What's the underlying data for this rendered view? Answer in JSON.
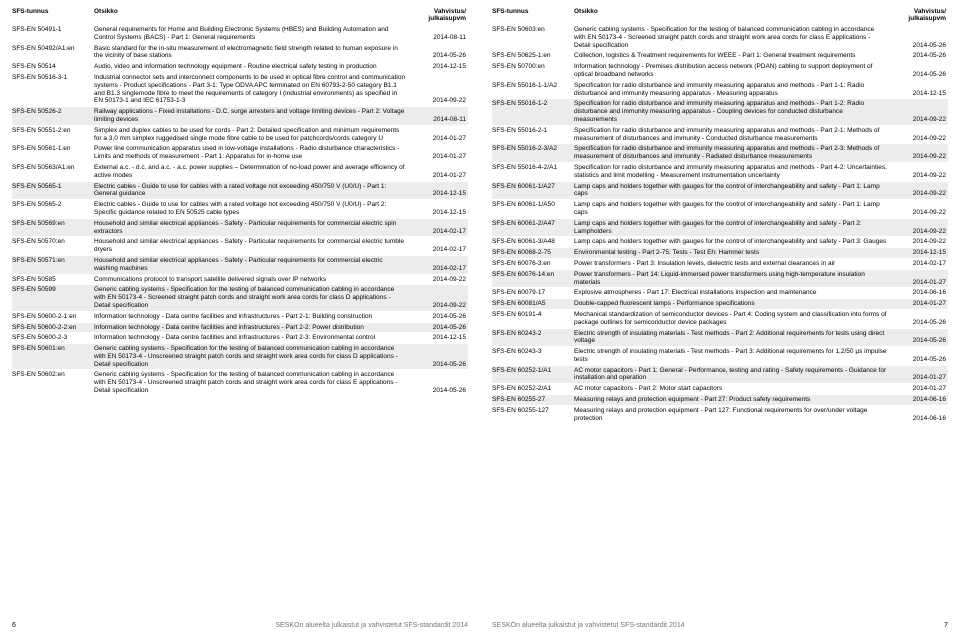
{
  "header": {
    "sfs_label": "SFS-tunnus",
    "title_label": "Otsikko",
    "date_label_l1": "Vahvistus/",
    "date_label_l2": "julkaisupvm"
  },
  "left_footer_page": "6",
  "right_footer_page": "7",
  "footer_text": "SESKOn alueelta julkaistut ja vahvistetut SFS-standardit 2014",
  "left_rows": [
    {
      "sfs": "SFS-EN 50491-1",
      "title": "General requirements for Home and Building Electronic Systems (HBES) and Building Automation and Control Systems (BACS) - Part 1: General requirements",
      "date": "2014-08-11",
      "shaded": false
    },
    {
      "sfs": "SFS-EN 50492/A1:en",
      "title": "Basic standard for the in-situ measurement of electromagnetic field strength related to human exposure in the vicinity of base stations",
      "date": "2014-05-26",
      "shaded": false
    },
    {
      "sfs": "SFS-EN 50514",
      "title": "Audio, video and information technology equipment - Routine electrical safety testing in production",
      "date": "2014-12-15",
      "shaded": false
    },
    {
      "sfs": "SFS-EN 50516-3-1",
      "title": "Industrial connector sets and interconnect components to be used in optical fibre control and communication systems - Product specifications - Part 3-1: Type ODVA APC terminated on EN 60793-2-50 category B1.1 and B1.3 singlemode fibre to meet the requirements of category I (industrial environments) as specified in EN 50173-1 and IEC 61753-1-3",
      "date": "2014-09-22",
      "shaded": false
    },
    {
      "sfs": "SFS-EN 50526-2",
      "title": "Railway applications - Fixed installations - D.C. surge arresters and voltage limiting devices - Part 2: Voltage limiting devices",
      "date": "2014-08-11",
      "shaded": true
    },
    {
      "sfs": "SFS-EN 50551-2:en",
      "title": "Simplex and duplex cables to be used for cords - Part 2: Detailed specification and minimum requirements for a 3,0 mm simplex ruggedised single mode fibre cable to be used for patchcords/cords category U",
      "date": "2014-01-27",
      "shaded": false
    },
    {
      "sfs": "SFS-EN 50561-1:en",
      "title": "Power line communication apparatus used in low-voltage installations - Radio disturbance characteristics - Limits and methods of measurement - Part 1: Apparatus for in-home use",
      "date": "2014-01-27",
      "shaded": false
    },
    {
      "sfs": "SFS-EN 50563/A1:en",
      "title": "External a.c. - d.c. and a.c. - a.c. power supplies – Determination of no-load power and average efficiency of active modes",
      "date": "2014-01-27",
      "shaded": false
    },
    {
      "sfs": "SFS-EN 50565-1",
      "title": "Electric cables - Guide to use for cables with a rated voltage not exceeding 450/750 V (U0/U) - Part 1: General guidance",
      "date": "2014-12-15",
      "shaded": true
    },
    {
      "sfs": "SFS-EN 50565-2",
      "title": "Electric cables - Guide to use for cables with a rated voltage not exceeding 450/750 V (U0/U) - Part 2: Specific guidance related to EN 50525 cable types",
      "date": "2014-12-15",
      "shaded": false
    },
    {
      "sfs": "SFS-EN 50569:en",
      "title": "Household and similar electrical appliances - Safety - Particular requirements for commercial electric spin extractors",
      "date": "2014-02-17",
      "shaded": true
    },
    {
      "sfs": "SFS-EN 50570:en",
      "title": "Household and similar electrical appliances - Safety - Particular requirements for commercial electric tumble dryers",
      "date": "2014-02-17",
      "shaded": false
    },
    {
      "sfs": "SFS-EN 50571:en",
      "title": "Household and similar electrical appliances - Safety - Particular requirements for commercial electric washing machines",
      "date": "2014-02-17",
      "shaded": true
    },
    {
      "sfs": "SFS-EN 50585",
      "title": "Communications protocol to transport satellite delivered signals over IP networks",
      "date": "2014-09-22",
      "shaded": false
    },
    {
      "sfs": "SFS-EN 50599",
      "title": "Generic cabling systems - Specification for the testing of balanced communication cabling in accordance with EN 50173-4 - Screened straight patch cords and straight work area cords for class D applications - Detail specification",
      "date": "2014-09-22",
      "shaded": true
    },
    {
      "sfs": "SFS-EN 50600-2-1:en",
      "title": "Information technology - Data centre facilities and infrastructures - Part 2-1: Building construction",
      "date": "2014-05-26",
      "shaded": false
    },
    {
      "sfs": "SFS-EN 50600-2-2:en",
      "title": "Information technology - Data centre facilities and infrastructures - Part 2-2: Power distribution",
      "date": "2014-05-26",
      "shaded": true
    },
    {
      "sfs": "SFS-EN 50600-2-3",
      "title": "Information technology - Data centre facilities and infrastructures - Part 2-3: Environmental control",
      "date": "2014-12-15",
      "shaded": false
    },
    {
      "sfs": "SFS-EN 50601:en",
      "title": "Generic cabling systems - Specification for the testing of balanced communication cabling in accordance with EN 50173-4 - Unscreened straight patch cords and straight work area cords for class D applications - Detail specification",
      "date": "2014-05-26",
      "shaded": true
    },
    {
      "sfs": "SFS-EN 50602:en",
      "title": "Generic cabling systems - Specification for the testing of balanced communication cabling in accordance with EN 50173-4 - Unscreened straight patch cords and straight work area cords for class E applications - Detail specification",
      "date": "2014-05-26",
      "shaded": false
    }
  ],
  "right_rows": [
    {
      "sfs": "SFS-EN 50603:en",
      "title": "Generic cabling systems - Specification for the testing of balanced communication cabling in accordance with EN 50173-4 - Screened straight patch cords and straight work area cords for class E applications - Detail specification",
      "date": "2014-05-26",
      "shaded": false
    },
    {
      "sfs": "SFS-EN 50625-1:en",
      "title": "Collection, logistics & Treatment requirements for WEEE - Part 1: General treatment requirements",
      "date": "2014-05-26",
      "shaded": false
    },
    {
      "sfs": "SFS-EN 50700:en",
      "title": "Information technology - Premises distribution access network (PDAN) cabling to support deployment of optical broadband networks",
      "date": "2014-05-26",
      "shaded": false
    },
    {
      "sfs": "SFS-EN 55016-1-1/A2",
      "title": "Specification for radio disturbance and immunity measuring apparatus and methods - Part 1-1: Radio disturbance and immunity measuring apparatus - Measuring apparatus",
      "date": "2014-12-15",
      "shaded": false
    },
    {
      "sfs": "SFS-EN 55016-1-2",
      "title": "Specification for radio disturbance and immunity measuring apparatus and methods - Part 1-2: Radio disturbance and immunity measuring apparatus - Coupling devices for conducted disturbance measurements",
      "date": "2014-09-22",
      "shaded": true
    },
    {
      "sfs": "SFS-EN 55016-2-1",
      "title": "Specification for radio disturbance and immunity measuring apparatus and methods - Part 2-1: Methods of measurement of disturbances and immunity - Conducted disturbance measurements",
      "date": "2014-09-22",
      "shaded": false
    },
    {
      "sfs": "SFS-EN 55016-2-3/A2",
      "title": "Specification for radio disturbance and immunity measuring apparatus and methods - Part 2-3: Methods of measurement of disturbances and immunity - Radiated disturbance measurements",
      "date": "2014-09-22",
      "shaded": true
    },
    {
      "sfs": "SFS-EN 55016-4-2/A1",
      "title": "Specification for radio disturbance and immunity measuring apparatus and methods - Part 4-2: Uncertainties, statistics and limit modelling - Measurement instrumentation uncertainty",
      "date": "2014-09-22",
      "shaded": false
    },
    {
      "sfs": "SFS-EN 60061-1/A27",
      "title": "Lamp caps and holders together with gauges for the control of interchangeability and safety - Part 1: Lamp caps",
      "date": "2014-09-22",
      "shaded": true
    },
    {
      "sfs": "SFS-EN 60061-1/A50",
      "title": "Lamp caps and holders together with gauges for the control of interchangeability and safety - Part 1: Lamp caps",
      "date": "2014-09-22",
      "shaded": false
    },
    {
      "sfs": "SFS-EN 60061-2/A47",
      "title": "Lamp caps and holders together with gauges for the control of interchangeability and safety - Part 2: Lampholders",
      "date": "2014-09-22",
      "shaded": true
    },
    {
      "sfs": "SFS-EN 60061-3/A48",
      "title": "Lamp caps and holders together with gauges for the control of interchangeability and safety - Part 3: Gauges",
      "date": "2014-09-22",
      "shaded": false
    },
    {
      "sfs": "SFS-EN 60068-2-75",
      "title": "Environmental testing - Part 2-75: Tests - Test Eh: Hammer tests",
      "date": "2014-12-15",
      "shaded": true
    },
    {
      "sfs": "SFS-EN 60076-3:en",
      "title": "Power transformers - Part 3: Insulation levels, dielectric tests and external clearances in air",
      "date": "2014-02-17",
      "shaded": false
    },
    {
      "sfs": "SFS-EN 60076-14:en",
      "title": "Power transformers - Part 14: Liquid-immersed power transformers using high-temperature insulation materials",
      "date": "2014-01-27",
      "shaded": true
    },
    {
      "sfs": "SFS-EN 60079-17",
      "title": "Explosive atmospheres - Part 17: Electrical installations inspection and maintenance",
      "date": "2014-06-16",
      "shaded": false
    },
    {
      "sfs": "SFS-EN 60081/A5",
      "title": "Double-capped fluorescent lamps - Performance specifications",
      "date": "2014-01-27",
      "shaded": true
    },
    {
      "sfs": "SFS-EN 60191-4",
      "title": "Mechanical standardization of semiconductor devices - Part 4: Coding system and classification into forms of package outlines for semiconductor device packages",
      "date": "2014-05-26",
      "shaded": false
    },
    {
      "sfs": "SFS-EN 60243-2",
      "title": "Electric strength of insulating materials - Test methods - Part 2: Additional requirements for tests using direct voltage",
      "date": "2014-05-26",
      "shaded": true
    },
    {
      "sfs": "SFS-EN 60243-3",
      "title": "Electric strength of insulating materials - Test methods - Part 3: Additional requirements for 1,2/50 µs impulse tests",
      "date": "2014-05-26",
      "shaded": false
    },
    {
      "sfs": "SFS-EN 60252-1/A1",
      "title": "AC motor capacitors - Part 1: General - Performance, testing and rating - Safety requirements - Guidance for installation and operation",
      "date": "2014-01-27",
      "shaded": true
    },
    {
      "sfs": "SFS-EN 60252-2/A1",
      "title": "AC motor capacitors - Part 2: Motor start capacitors",
      "date": "2014-01-27",
      "shaded": false
    },
    {
      "sfs": "SFS-EN 60255-27",
      "title": "Measuring relays and protection equipment - Part 27: Product safety requirements",
      "date": "2014-06-16",
      "shaded": true
    },
    {
      "sfs": "SFS-EN 60255-127",
      "title": "Measuring relays and protection equipment - Part 127: Functional requirements for over/under voltage protection",
      "date": "2014-06-16",
      "shaded": false
    }
  ]
}
